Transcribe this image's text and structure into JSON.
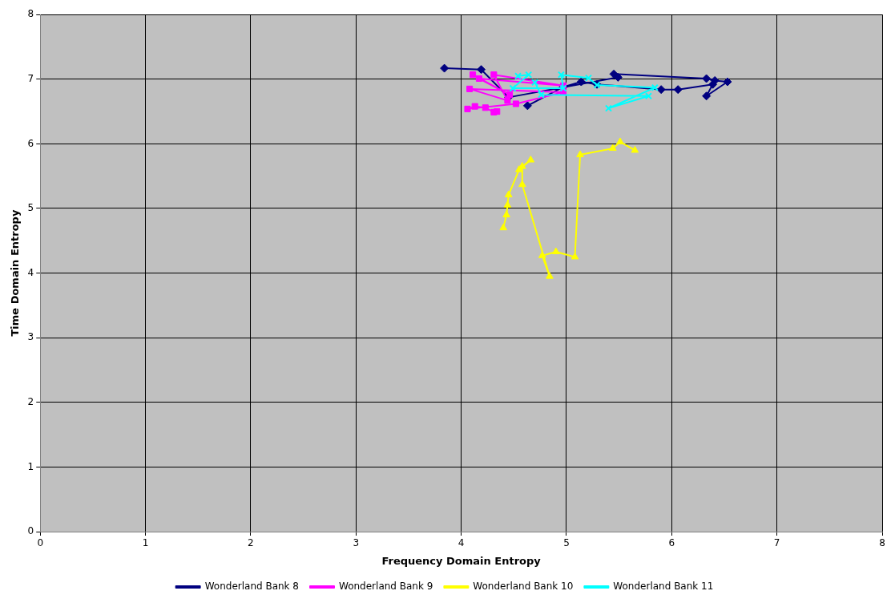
{
  "chart_data": {
    "type": "line",
    "xlabel": "Frequency Domain Entropy",
    "ylabel": "Time Domain Entropy",
    "xlim": [
      0,
      8
    ],
    "ylim": [
      0,
      8
    ],
    "xticks": [
      0,
      1,
      2,
      3,
      4,
      5,
      6,
      7,
      8
    ],
    "yticks": [
      0,
      1,
      2,
      3,
      4,
      5,
      6,
      7,
      8
    ],
    "grid": true,
    "legend": "bottom",
    "line_style": "solid",
    "series": [
      {
        "name": "Wonderland Bank 8",
        "color": "#000080",
        "marker": "diamond",
        "x": [
          3.84,
          4.19,
          4.45,
          5.49,
          5.45,
          6.33,
          6.41,
          6.53,
          6.33,
          6.39,
          6.06,
          5.9,
          5.29,
          5.14,
          4.97,
          4.63
        ],
        "values": [
          7.17,
          7.15,
          6.72,
          7.03,
          7.08,
          7.01,
          6.98,
          6.96,
          6.74,
          6.92,
          6.84,
          6.84,
          6.92,
          6.96,
          6.88,
          6.59
        ]
      },
      {
        "name": "Wonderland Bank 9",
        "color": "#ff00ff",
        "marker": "square",
        "x": [
          4.11,
          4.46,
          4.17,
          4.97,
          4.31,
          4.44,
          4.08,
          4.97,
          4.52,
          4.06,
          4.13,
          4.23,
          4.31,
          4.34
        ],
        "values": [
          7.07,
          6.76,
          7.01,
          6.9,
          7.07,
          6.67,
          6.85,
          6.8,
          6.62,
          6.54,
          6.58,
          6.56,
          6.49,
          6.5
        ]
      },
      {
        "name": "Wonderland Bank 10",
        "color": "#ffff00",
        "marker": "triangle",
        "x": [
          4.4,
          4.43,
          4.44,
          4.45,
          4.55,
          4.66,
          4.58,
          4.58,
          4.84,
          4.77,
          4.9,
          5.08,
          5.13,
          5.44,
          5.51,
          5.65
        ],
        "values": [
          4.7,
          4.9,
          5.05,
          5.21,
          5.6,
          5.75,
          5.65,
          5.37,
          3.95,
          4.27,
          4.33,
          4.25,
          5.83,
          5.93,
          6.03,
          5.9
        ]
      },
      {
        "name": "Wonderland Bank 11",
        "color": "#00ffff",
        "marker": "cross",
        "x": [
          4.54,
          4.64,
          4.49,
          4.97,
          4.95,
          5.21,
          5.29,
          5.84,
          5.4,
          5.78,
          4.76,
          4.7
        ],
        "values": [
          7.05,
          7.07,
          6.86,
          6.86,
          7.07,
          7.02,
          6.91,
          6.87,
          6.55,
          6.74,
          6.76,
          6.95
        ]
      }
    ]
  }
}
